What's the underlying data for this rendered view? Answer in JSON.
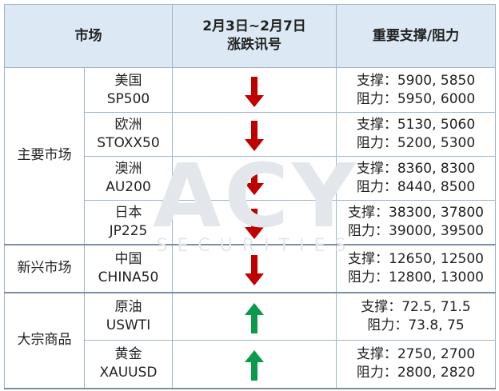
{
  "header": {
    "market": "市场",
    "period": "2月3日~2月7日",
    "signal": "涨跌讯号",
    "levels": "重要支撑/阻力"
  },
  "watermark": {
    "logo": "ACY",
    "sub": "SECURITIES"
  },
  "groups": [
    {
      "name": "主要市场",
      "rows": [
        {
          "name": "美国",
          "code": "SP500",
          "signal": "down",
          "support": "支撑：5900, 5850",
          "resistance": "阻力：5950, 6000"
        },
        {
          "name": "欧洲",
          "code": "STOXX50",
          "signal": "down",
          "support": "支撑：5130, 5060",
          "resistance": "阻力：5200, 5300"
        },
        {
          "name": "澳洲",
          "code": "AU200",
          "signal": "down",
          "support": "支撑：8360, 8300",
          "resistance": "阻力：8440, 8500"
        },
        {
          "name": "日本",
          "code": "JP225",
          "signal": "down",
          "support": "支撑：38300, 37800",
          "resistance": "阻力：39000, 39500"
        }
      ]
    },
    {
      "name": "新兴市场",
      "rows": [
        {
          "name": "中国",
          "code": "CHINA50",
          "signal": "down",
          "support": "支撑：12650, 12500",
          "resistance": "阻力：12800, 13000"
        }
      ]
    },
    {
      "name": "大宗商品",
      "rows": [
        {
          "name": "原油",
          "code": "USWTI",
          "signal": "up",
          "support": "支撑：72.5, 71.5",
          "resistance": "阻力：73.8, 75"
        },
        {
          "name": "黄金",
          "code": "XAUUSD",
          "signal": "up",
          "support": "支撑：2750, 2700",
          "resistance": "阻力：2800, 2820"
        }
      ]
    }
  ]
}
